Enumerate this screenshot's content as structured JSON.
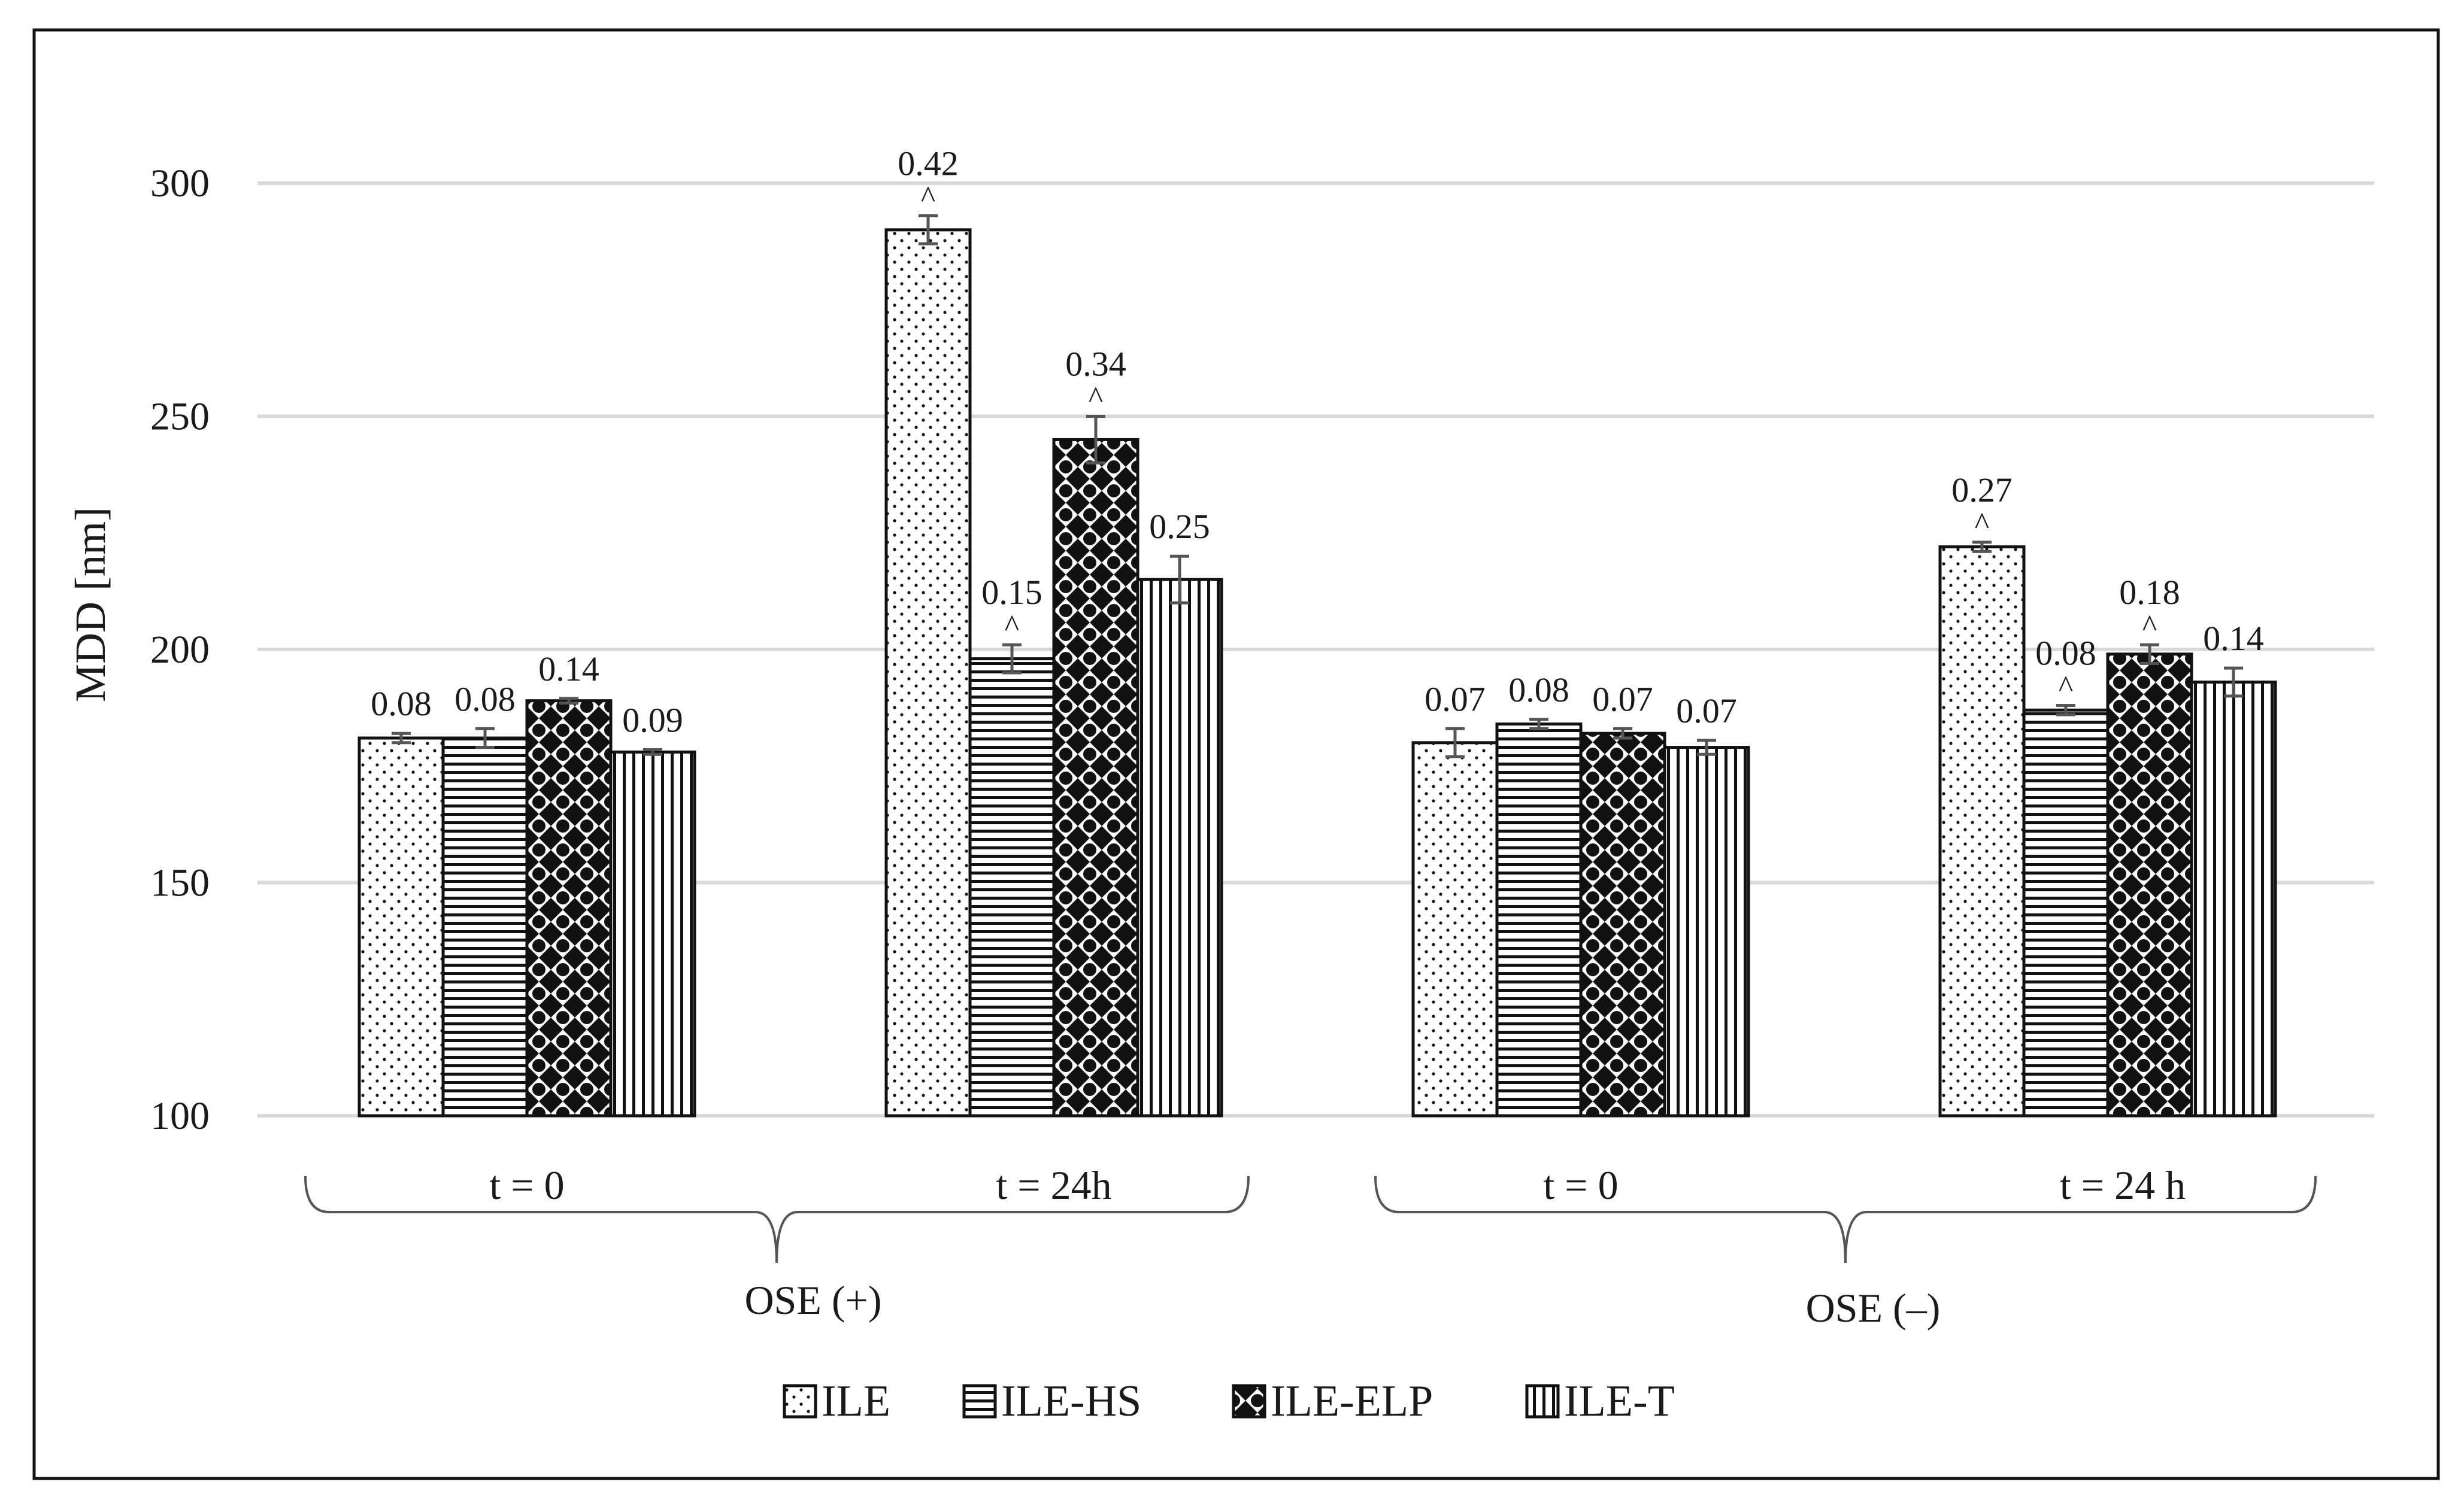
{
  "chart_data": {
    "type": "bar",
    "ylabel": "MDD [nm]",
    "ylim": [
      100,
      300
    ],
    "yticks": [
      100,
      150,
      200,
      250,
      300
    ],
    "grid": true,
    "legend_position": "bottom",
    "groups": [
      "OSE (+)",
      "OSE (–)"
    ],
    "categories": [
      "t = 0",
      "t = 24h",
      "t = 0",
      "t = 24 h"
    ],
    "category_group": [
      0,
      0,
      1,
      1
    ],
    "series": [
      {
        "name": "ILE",
        "pattern": "dots",
        "values": [
          181,
          290,
          180,
          222
        ],
        "errors": [
          1,
          3,
          3,
          1
        ],
        "labels": [
          "0.08",
          "0.42",
          "0.07",
          "0.27"
        ],
        "caret": [
          false,
          true,
          false,
          true
        ]
      },
      {
        "name": "ILE-HS",
        "pattern": "horizontal",
        "values": [
          181,
          198,
          184,
          187
        ],
        "errors": [
          2,
          3,
          1,
          1
        ],
        "labels": [
          "0.08",
          "0.15",
          "0.08",
          "0.08"
        ],
        "caret": [
          false,
          true,
          false,
          true
        ]
      },
      {
        "name": "ILE-ELP",
        "pattern": "checker",
        "values": [
          189,
          245,
          182,
          199
        ],
        "errors": [
          0.5,
          5,
          1,
          2
        ],
        "labels": [
          "0.14",
          "0.34",
          "0.07",
          "0.18"
        ],
        "caret": [
          false,
          true,
          false,
          true
        ]
      },
      {
        "name": "ILE-T",
        "pattern": "vertical",
        "values": [
          178,
          215,
          179,
          193
        ],
        "errors": [
          0.5,
          5,
          1.5,
          3
        ],
        "labels": [
          "0.09",
          "0.25",
          "0.07",
          "0.14"
        ],
        "caret": [
          false,
          false,
          false,
          false
        ]
      }
    ],
    "annotation_symbol": "^",
    "colors": {
      "bar_outline": "#111111",
      "grid": "#d9d9d9",
      "error_bar": "#555555",
      "frame": "#111111"
    }
  }
}
